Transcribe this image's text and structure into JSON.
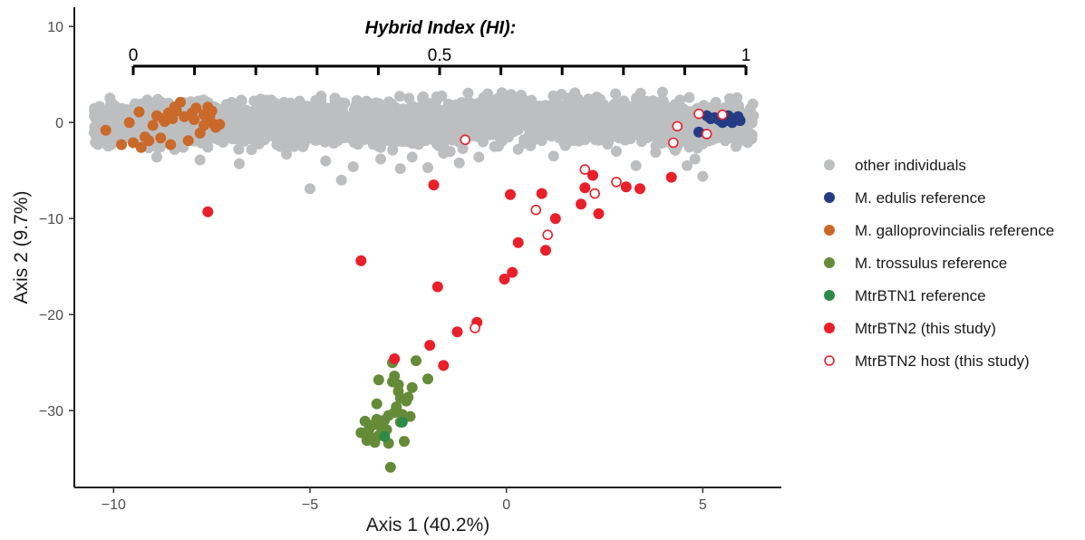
{
  "chart_data": {
    "type": "scatter",
    "xlabel": "Axis 1 (40.2%)",
    "ylabel": "Axis 2 (9.7%)",
    "xlim": [
      -11,
      7
    ],
    "ylim": [
      -38,
      12
    ],
    "x_ticks": [
      -10,
      -5,
      0,
      5
    ],
    "x_tick_labels": [
      "−10",
      "−5",
      "0",
      "5"
    ],
    "y_ticks": [
      10,
      0,
      -10,
      -20,
      -30
    ],
    "y_tick_labels": [
      "10",
      "0",
      "−10",
      "−20",
      "−30"
    ],
    "grid": false,
    "legend_position": "right",
    "secondary_axis": {
      "title": "Hybrid Index (HI):",
      "range": [
        0,
        1
      ],
      "maps_to_x": [
        -9.5,
        6.1
      ],
      "tick_labels": [
        {
          "value": 0,
          "label": "0"
        },
        {
          "value": 0.5,
          "label": "0.5"
        },
        {
          "value": 1,
          "label": "1"
        }
      ],
      "minor_ticks": [
        0.1,
        0.2,
        0.3,
        0.4,
        0.6,
        0.7,
        0.8,
        0.9
      ]
    },
    "series": [
      {
        "name": "other individuals",
        "color": "#bdbec0",
        "marker": "filled",
        "band": {
          "x_range": [
            -10.5,
            6.3
          ],
          "y_range": [
            -3.5,
            3.2
          ]
        },
        "points": [
          [
            -5.0,
            -6.9
          ],
          [
            -4.2,
            -6.0
          ],
          [
            -3.9,
            -4.6
          ],
          [
            -2.7,
            -4.8
          ],
          [
            -2.0,
            -4.7
          ],
          [
            -1.2,
            -4.2
          ],
          [
            -0.7,
            -3.6
          ],
          [
            -0.3,
            -2.5
          ],
          [
            0.3,
            -2.8
          ],
          [
            1.5,
            -2.4
          ],
          [
            2.0,
            -1.8
          ],
          [
            3.3,
            -4.5
          ],
          [
            4.6,
            -4.5
          ],
          [
            5.0,
            -5.6
          ],
          [
            4.8,
            -3.8
          ],
          [
            -6.8,
            -4.3
          ],
          [
            -7.8,
            -3.9
          ],
          [
            -8.9,
            -3.6
          ],
          [
            -3.2,
            -3.8
          ],
          [
            -1.6,
            -3.2
          ],
          [
            0.9,
            -1.9
          ],
          [
            2.6,
            -2.0
          ],
          [
            3.8,
            -3.1
          ],
          [
            -5.6,
            -3.3
          ],
          [
            1.2,
            -3.5
          ],
          [
            -2.4,
            -3.6
          ],
          [
            4.3,
            -2.9
          ],
          [
            -0.1,
            -1.9
          ],
          [
            2.8,
            -3.0
          ],
          [
            -4.6,
            -4.0
          ]
        ]
      },
      {
        "name": "M. edulis reference",
        "color": "#253c84",
        "marker": "filled",
        "points": [
          [
            5.1,
            0.7
          ],
          [
            5.4,
            0.3
          ],
          [
            5.5,
            0.6
          ],
          [
            5.6,
            0.2
          ],
          [
            5.7,
            0.5
          ],
          [
            5.8,
            0.3
          ],
          [
            5.9,
            0.6
          ],
          [
            5.75,
            0.0
          ],
          [
            5.3,
            0.5
          ],
          [
            4.9,
            -1.0
          ],
          [
            5.95,
            0.2
          ],
          [
            5.65,
            0.7
          ],
          [
            5.2,
            0.4
          ],
          [
            5.85,
            0.4
          ],
          [
            5.5,
            0.0
          ]
        ]
      },
      {
        "name": "M. galloprovincialis reference",
        "color": "#c9692a",
        "marker": "filled",
        "points": [
          [
            -10.2,
            -0.8
          ],
          [
            -9.5,
            -2.1
          ],
          [
            -9.3,
            -2.6
          ],
          [
            -9.2,
            -1.5
          ],
          [
            -9.0,
            -0.3
          ],
          [
            -8.9,
            0.7
          ],
          [
            -8.8,
            -1.6
          ],
          [
            -8.7,
            0.1
          ],
          [
            -8.6,
            1.0
          ],
          [
            -8.55,
            -2.3
          ],
          [
            -8.5,
            0.4
          ],
          [
            -8.4,
            1.2
          ],
          [
            -8.3,
            2.1
          ],
          [
            -8.2,
            0.6
          ],
          [
            -8.1,
            -1.9
          ],
          [
            -8.0,
            1.0
          ],
          [
            -7.95,
            0.3
          ],
          [
            -7.9,
            1.5
          ],
          [
            -7.8,
            -1.1
          ],
          [
            -7.7,
            0.8
          ],
          [
            -7.6,
            1.6
          ],
          [
            -7.55,
            0.6
          ],
          [
            -7.5,
            1.2
          ],
          [
            -7.45,
            -0.2
          ],
          [
            -7.4,
            -0.5
          ],
          [
            -9.6,
            0.0
          ],
          [
            -9.35,
            1.1
          ],
          [
            -9.1,
            -1.9
          ],
          [
            -8.75,
            0.4
          ],
          [
            -8.45,
            1.6
          ],
          [
            -7.7,
            -0.3
          ],
          [
            -9.8,
            -2.3
          ],
          [
            -7.3,
            -0.2
          ]
        ]
      },
      {
        "name": "M. trossulus reference",
        "color": "#658b39",
        "marker": "filled",
        "points": [
          [
            -3.7,
            -32.3
          ],
          [
            -3.6,
            -31.1
          ],
          [
            -3.55,
            -33.1
          ],
          [
            -3.5,
            -32.0
          ],
          [
            -3.4,
            -31.5
          ],
          [
            -3.35,
            -33.3
          ],
          [
            -3.3,
            -29.3
          ],
          [
            -3.25,
            -32.6
          ],
          [
            -3.2,
            -31.7
          ],
          [
            -3.15,
            -32.4
          ],
          [
            -3.1,
            -31.0
          ],
          [
            -3.05,
            -32.0
          ],
          [
            -3.0,
            -30.5
          ],
          [
            -2.95,
            -35.9
          ],
          [
            -2.9,
            -27.0
          ],
          [
            -2.85,
            -26.4
          ],
          [
            -2.8,
            -29.6
          ],
          [
            -2.75,
            -27.3
          ],
          [
            -2.7,
            -28.7
          ],
          [
            -2.65,
            -30.4
          ],
          [
            -2.6,
            -33.2
          ],
          [
            -2.55,
            -29.0
          ],
          [
            -2.5,
            -28.6
          ],
          [
            -2.45,
            -30.6
          ],
          [
            -2.4,
            -27.6
          ],
          [
            -2.3,
            -24.8
          ],
          [
            -2.0,
            -26.7
          ],
          [
            -3.25,
            -26.8
          ],
          [
            -2.9,
            -25.0
          ],
          [
            -2.85,
            -30.2
          ],
          [
            -3.45,
            -32.8
          ],
          [
            -2.7,
            -31.2
          ],
          [
            -3.0,
            -33.4
          ],
          [
            -3.3,
            -30.9
          ],
          [
            -2.75,
            -28.0
          ]
        ]
      },
      {
        "name": "MtrBTN1 reference",
        "color": "#2e8b46",
        "marker": "filled",
        "points": [
          [
            -3.1,
            -32.7
          ],
          [
            -2.65,
            -31.2
          ]
        ]
      },
      {
        "name": "MtrBTN2 (this study)",
        "color": "#e8202a",
        "marker": "filled",
        "points": [
          [
            -7.6,
            -9.3
          ],
          [
            -3.7,
            -14.4
          ],
          [
            -2.85,
            -24.6
          ],
          [
            -1.95,
            -23.2
          ],
          [
            -1.85,
            -6.5
          ],
          [
            -1.75,
            -17.1
          ],
          [
            -1.6,
            -25.3
          ],
          [
            -1.25,
            -21.8
          ],
          [
            -0.75,
            -20.8
          ],
          [
            -0.05,
            -16.3
          ],
          [
            0.1,
            -7.5
          ],
          [
            0.15,
            -15.6
          ],
          [
            0.3,
            -12.5
          ],
          [
            0.9,
            -7.4
          ],
          [
            1.0,
            -13.3
          ],
          [
            1.25,
            -10.0
          ],
          [
            1.9,
            -8.5
          ],
          [
            2.0,
            -6.8
          ],
          [
            2.2,
            -5.5
          ],
          [
            2.35,
            -9.5
          ],
          [
            3.05,
            -6.7
          ],
          [
            3.4,
            -6.9
          ],
          [
            4.2,
            -5.7
          ]
        ]
      },
      {
        "name": "MtrBTN2 host (this study)",
        "color": "#e8202a",
        "marker": "open",
        "points": [
          [
            -1.05,
            -1.8
          ],
          [
            -0.8,
            -21.4
          ],
          [
            0.75,
            -9.1
          ],
          [
            1.05,
            -11.7
          ],
          [
            2.0,
            -4.9
          ],
          [
            2.25,
            -7.4
          ],
          [
            2.8,
            -6.2
          ],
          [
            4.25,
            -2.1
          ],
          [
            4.35,
            -0.4
          ],
          [
            4.9,
            0.9
          ],
          [
            5.1,
            -1.2
          ],
          [
            5.5,
            0.8
          ]
        ]
      }
    ]
  }
}
